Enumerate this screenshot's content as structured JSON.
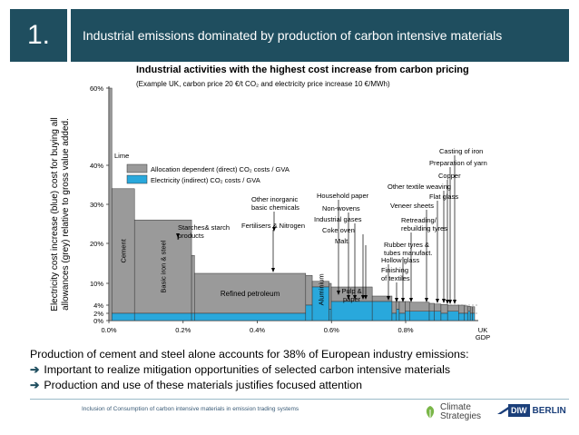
{
  "header": {
    "number": "1.",
    "title": "Industrial emissions dominated by production of carbon intensive materials"
  },
  "chart_data": {
    "type": "bar",
    "title": "Industrial activities with the highest cost increase from carbon pricing",
    "subtitle": "(Example UK, carbon price 20 €/t CO₂ and electricity price increase 10 €/MWh)",
    "ylabel_lines": [
      "Electricity cost increase (blue) cost for buying all",
      "allowances (grey) relative to gross value added."
    ],
    "x_unit": "share of UK GDP (%)",
    "y_unit": "%",
    "xlim": [
      0,
      1.15
    ],
    "ylim": [
      0,
      62
    ],
    "x_ticks": [
      {
        "v": 0,
        "label": "0.0%"
      },
      {
        "v": 0.2,
        "label": "0.2%"
      },
      {
        "v": 0.4,
        "label": "0.4%"
      },
      {
        "v": 0.6,
        "label": "0.6%"
      },
      {
        "v": 0.8,
        "label": "0.8%"
      }
    ],
    "x_end_label": [
      "UK",
      "GDP"
    ],
    "y_ticks": [
      {
        "v": 0,
        "label": "0%"
      },
      {
        "v": 2,
        "label": "2%"
      },
      {
        "v": 4,
        "label": "4%"
      },
      {
        "v": 10,
        "label": "10%"
      },
      {
        "v": 20,
        "label": "20%"
      },
      {
        "v": 30,
        "label": "30%"
      },
      {
        "v": 40,
        "label": "40%"
      },
      {
        "v": 60,
        "label": "60%"
      }
    ],
    "legend": [
      {
        "name": "Allocation dependent (direct) CO₂ costs / GVA",
        "color": "#9a9a9a"
      },
      {
        "name": "Electricity (indirect) CO₂ costs / GVA",
        "color": "#29a8dc"
      }
    ],
    "bars": [
      {
        "x0": 0.0,
        "x1": 0.004,
        "total": 60.0,
        "blue": 0.0,
        "label": "Lime"
      },
      {
        "x0": 0.004,
        "x1": 0.035,
        "total": 34.0,
        "blue": 2.0,
        "label": "Cement"
      },
      {
        "x0": 0.035,
        "x1": 0.113,
        "total": 26.0,
        "blue": 2.0,
        "label": "Basic iron & steel"
      },
      {
        "x0": 0.113,
        "x1": 0.117,
        "total": 17.0,
        "blue": 2.0,
        "label": "Starches& starch products"
      },
      {
        "x0": 0.117,
        "x1": 0.269,
        "total": 12.5,
        "blue": 2.0,
        "label": "Refined petroleum"
      },
      {
        "x0": 0.269,
        "x1": 0.278,
        "total": 12.0,
        "blue": 4.0,
        "label": "Fertilisers & Nitrogen"
      },
      {
        "x0": 0.278,
        "x1": 0.301,
        "total": 10.5,
        "blue": 9.0,
        "label": "Aluminium"
      },
      {
        "x0": 0.301,
        "x1": 0.304,
        "total": 10.0,
        "blue": 3.0,
        "label": "Other inorganic basic chemicals"
      },
      {
        "x0": 0.304,
        "x1": 0.36,
        "total": 9.0,
        "blue": 5.0,
        "label": "Pulp & paper"
      },
      {
        "x0": 0.36,
        "x1": 0.387,
        "total": 6.5,
        "blue": 5.0,
        "label": "Household paper"
      },
      {
        "x0": 0.387,
        "x1": 0.393,
        "total": 5.0,
        "blue": 2.0,
        "label": "Non-wovens"
      },
      {
        "x0": 0.393,
        "x1": 0.397,
        "total": 5.0,
        "blue": 3.0,
        "label": "Industrial gases"
      },
      {
        "x0": 0.397,
        "x1": 0.405,
        "total": 5.0,
        "blue": 2.0,
        "label": "Coke oven"
      },
      {
        "x0": 0.405,
        "x1": 0.411,
        "total": 5.0,
        "blue": 2.5,
        "label": "Malt."
      },
      {
        "x0": 0.411,
        "x1": 0.438,
        "total": 4.8,
        "blue": 2.5,
        "label": "Hollow glass"
      },
      {
        "x0": 0.438,
        "x1": 0.445,
        "total": 4.5,
        "blue": 2.5,
        "label": "Finishing of textiles"
      },
      {
        "x0": 0.445,
        "x1": 0.454,
        "total": 4.3,
        "blue": 2.5,
        "label": "Rubber tyres & tubes manufact."
      },
      {
        "x0": 0.454,
        "x1": 0.463,
        "total": 4.2,
        "blue": 2.0,
        "label": "Retreading/ rebuilding tyres"
      },
      {
        "x0": 0.463,
        "x1": 0.478,
        "total": 4.0,
        "blue": 2.5,
        "label": "Veneer sheets"
      },
      {
        "x0": 0.478,
        "x1": 0.486,
        "total": 4.0,
        "blue": 2.0,
        "label": "Flat glass"
      },
      {
        "x0": 0.486,
        "x1": 0.491,
        "total": 3.8,
        "blue": 2.0,
        "label": "Other textile weaving"
      },
      {
        "x0": 0.491,
        "x1": 0.494,
        "total": 3.7,
        "blue": 2.5,
        "label": "Copper"
      },
      {
        "x0": 0.494,
        "x1": 0.497,
        "total": 3.6,
        "blue": 2.0,
        "label": "Preparation of yarn"
      },
      {
        "x0": 0.497,
        "x1": 0.5,
        "total": 3.6,
        "blue": 2.0,
        "label": "Casting of iron"
      }
    ]
  },
  "notes": [
    {
      "arrow": "",
      "text": "Production of cement and steel alone accounts for 38% of European industry emissions:"
    },
    {
      "arrow": "➔",
      "text": "Important to realize mitigation opportunities of selected carbon intensive materials"
    },
    {
      "arrow": "➔",
      "text": "Production and use of these materials justifies focused attention"
    }
  ],
  "footer": {
    "text": "Inclusion of Consumption of carbon intensive materials in emission trading systems"
  },
  "logos": {
    "climate_strategies": [
      "Climate",
      "Strategies"
    ],
    "diw_box": "DIW",
    "diw_berlin": "BERLIN"
  }
}
